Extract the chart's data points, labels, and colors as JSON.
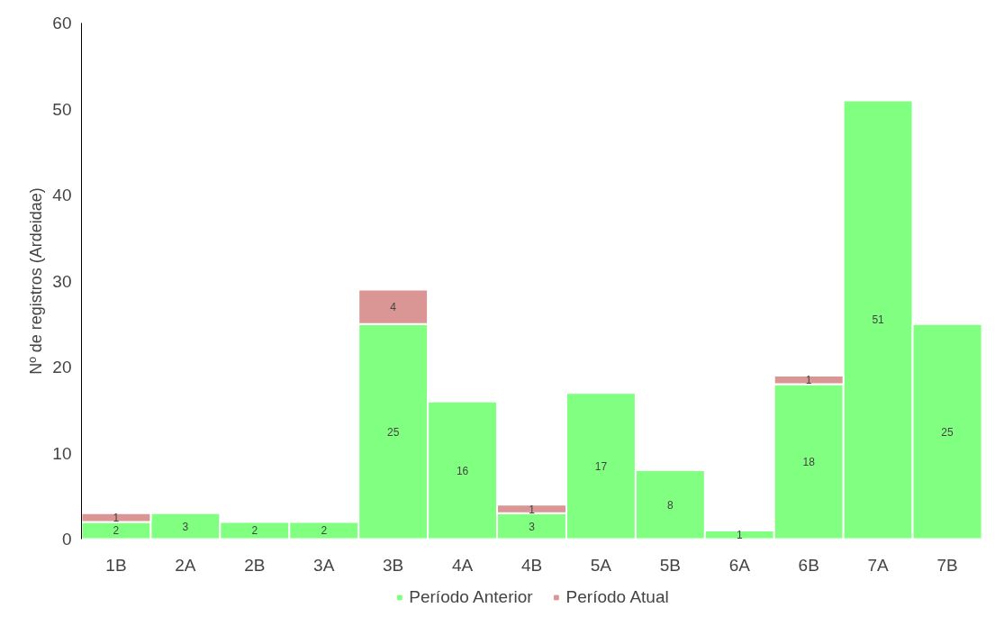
{
  "chart_data": {
    "type": "bar",
    "stacked": true,
    "ylabel": "Nº de registros (Ardeidae)",
    "categories": [
      "1B",
      "2A",
      "2B",
      "3A",
      "3B",
      "4A",
      "4B",
      "5A",
      "5B",
      "6A",
      "6B",
      "7A",
      "7B"
    ],
    "series": [
      {
        "name": "Período Anterior",
        "color": "#80ff80",
        "values": [
          2,
          3,
          2,
          2,
          25,
          16,
          3,
          17,
          8,
          1,
          18,
          51,
          25
        ]
      },
      {
        "name": "Período Atual",
        "color": "#d99694",
        "values": [
          1,
          null,
          null,
          null,
          4,
          null,
          1,
          null,
          null,
          null,
          1,
          null,
          null
        ]
      }
    ],
    "ylim": [
      0,
      60
    ],
    "yticks": [
      0,
      10,
      20,
      30,
      40,
      50,
      60
    ],
    "grid": false,
    "legend": "bottom",
    "data_labels": true
  }
}
